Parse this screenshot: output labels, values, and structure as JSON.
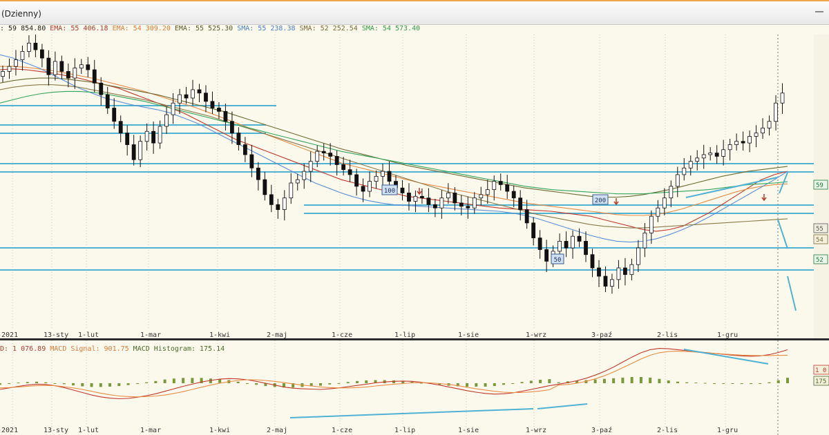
{
  "window": {
    "title": "(Dzienny)"
  },
  "legend": [
    {
      "text": ": 59 854.80",
      "color": "#222222"
    },
    {
      "text": " EMA: 55 406.18",
      "color": "#b03a2e"
    },
    {
      "text": " EMA: 54 309.20",
      "color": "#e07b39"
    },
    {
      "text": " EMA: 55 525.30",
      "color": "#5a5a2a"
    },
    {
      "text": " SMA: 55 238.38",
      "color": "#4a7fc8"
    },
    {
      "text": " SMA: 52 252.54",
      "color": "#7a6a3a"
    },
    {
      "text": " SMA: 54 573.40",
      "color": "#2e9b4a"
    }
  ],
  "macd_legend": [
    {
      "text": "D: 1 076.89",
      "color": "#b03a2e"
    },
    {
      "text": " MACD Signal: 901.75",
      "color": "#e07b39"
    },
    {
      "text": " MACD Histogram: 175.14",
      "color": "#4a6a2a"
    }
  ],
  "chart_data": {
    "type": "candlestick",
    "x_tick_labels": [
      "-2021",
      "13-sty",
      "1-lut",
      "1-mar",
      "1-kwi",
      "2-maj",
      "1-cze",
      "1-lip",
      "1-sie",
      "1-wrz",
      "3-paź",
      "2-lis",
      "1-gru"
    ],
    "price_axis_labels": [
      "59",
      "55",
      "54",
      "52"
    ],
    "macd_axis_labels": [
      "1 0",
      "175"
    ],
    "ma_markers": [
      "100",
      "200",
      "50"
    ],
    "price_ylim": [
      46000,
      63000
    ],
    "close_series": [
      61200,
      61500,
      61900,
      62400,
      62900,
      62500,
      62000,
      61000,
      61800,
      61200,
      60800,
      61400,
      61600,
      61300,
      60500,
      59800,
      59000,
      58200,
      57500,
      56800,
      55900,
      57000,
      57600,
      56900,
      57900,
      58600,
      59300,
      59800,
      59600,
      60100,
      59900,
      59400,
      59000,
      58800,
      58200,
      57500,
      56800,
      56200,
      55400,
      54700,
      53800,
      53200,
      52900,
      53600,
      54500,
      54700,
      55200,
      55800,
      56400,
      56300,
      56100,
      55600,
      55300,
      55000,
      54300,
      54000,
      54600,
      54900,
      55200,
      54600,
      54200,
      53900,
      53400,
      53700,
      53600,
      53200,
      53000,
      53600,
      53900,
      53300,
      53100,
      53000,
      53600,
      53800,
      54100,
      54600,
      54400,
      54000,
      53600,
      52900,
      52100,
      51200,
      50500,
      49800,
      50400,
      51000,
      50600,
      51300,
      51000,
      50200,
      49400,
      48900,
      48300,
      48700,
      49400,
      49000,
      49600,
      50600,
      51500,
      52500,
      53000,
      53600,
      54300,
      55000,
      55400,
      55800,
      56000,
      56200,
      56300,
      56100,
      56500,
      56800,
      57000,
      56900,
      57300,
      57500,
      57800,
      58200,
      59300,
      59900
    ],
    "ema_1": [
      61300,
      61350,
      61300,
      61200,
      61100,
      60950,
      60800,
      60600,
      60400,
      60200,
      59900,
      59600,
      59300,
      59000,
      58700,
      58300,
      57900,
      57500,
      57100,
      56800,
      56500,
      56200,
      55900,
      55600,
      55300,
      55000,
      54700,
      54500,
      54300,
      54100,
      53900,
      53700,
      53600,
      53500,
      53400,
      53300,
      53200,
      53100,
      53000,
      52950,
      52900,
      52850,
      52800,
      52700,
      52600,
      52500,
      52300,
      52100,
      51900,
      51700,
      51600,
      51700,
      51900,
      52300,
      52700,
      53200,
      53700,
      54200,
      54700,
      55000,
      55200
    ],
    "ema_2": [
      61500,
      61500,
      61450,
      61350,
      61250,
      61100,
      60950,
      60800,
      60600,
      60400,
      60200,
      60000,
      59750,
      59500,
      59250,
      59000,
      58700,
      58400,
      58100,
      57800,
      57500,
      57200,
      56900,
      56600,
      56300,
      56000,
      55700,
      55500,
      55300,
      55100,
      54900,
      54700,
      54500,
      54350,
      54200,
      54050,
      53900,
      53750,
      53600,
      53450,
      53300,
      53200,
      53100,
      53000,
      52900,
      52800,
      52700,
      52600,
      52550,
      52550,
      52600,
      52750,
      52950,
      53200,
      53450,
      53700,
      53950,
      54150,
      54300,
      54400,
      54450
    ],
    "ema_3": [
      60500,
      60650,
      60750,
      60800,
      60800,
      60750,
      60650,
      60550,
      60400,
      60250,
      60100,
      59950,
      59800,
      59600,
      59400,
      59200,
      59000,
      58800,
      58550,
      58300,
      58050,
      57800,
      57550,
      57300,
      57050,
      56800,
      56550,
      56350,
      56150,
      55950,
      55750,
      55550,
      55400,
      55250,
      55100,
      54950,
      54800,
      54650,
      54500,
      54350,
      54200,
      54100,
      54000,
      53900,
      53800,
      53700,
      53650,
      53650,
      53700,
      53800,
      53950,
      54100,
      54300,
      54500,
      54700,
      54900,
      55050,
      55200,
      55300,
      55400,
      55500
    ],
    "sma_1": [
      62200,
      62000,
      61700,
      61400,
      61000,
      60600,
      60200,
      59900,
      59600,
      59400,
      59200,
      59050,
      58900,
      58700,
      58400,
      58100,
      57700,
      57300,
      56900,
      56500,
      56100,
      55700,
      55300,
      54900,
      54500,
      54200,
      53900,
      53650,
      53450,
      53300,
      53200,
      53150,
      53100,
      53050,
      53000,
      52950,
      52900,
      52850,
      52800,
      52700,
      52550,
      52350,
      52100,
      51850,
      51600,
      51350,
      51150,
      51000,
      50950,
      51000,
      51150,
      51400,
      51700,
      52050,
      52450,
      52900,
      53350,
      53800,
      54250,
      54700,
      55200
    ],
    "sma_2": [
      60100,
      60250,
      60350,
      60400,
      60400,
      60350,
      60250,
      60100,
      59950,
      59800,
      59650,
      59500,
      59300,
      59100,
      58900,
      58700,
      58500,
      58250,
      58000,
      57750,
      57500,
      57250,
      57000,
      56750,
      56500,
      56250,
      56000,
      55750,
      55500,
      55250,
      55000,
      54750,
      54500,
      54250,
      54000,
      53800,
      53600,
      53400,
      53200,
      53000,
      52800,
      52600,
      52450,
      52300,
      52150,
      52000,
      51900,
      51850,
      51800,
      51800,
      51850,
      51900,
      51950,
      52000,
      52050,
      52100,
      52150,
      52200,
      52250,
      52300,
      52350
    ],
    "sma_3": [
      59300,
      59500,
      59700,
      59850,
      59950,
      60000,
      60000,
      59950,
      59850,
      59700,
      59550,
      59400,
      59200,
      59000,
      58800,
      58600,
      58400,
      58200,
      58000,
      57800,
      57600,
      57400,
      57200,
      57000,
      56800,
      56600,
      56400,
      56250,
      56100,
      55950,
      55800,
      55650,
      55500,
      55350,
      55200,
      55050,
      54900,
      54750,
      54600,
      54450,
      54300,
      54200,
      54100,
      54050,
      54000,
      53950,
      53900,
      53850,
      53850,
      53850,
      53900,
      53950,
      54000,
      54050,
      54100,
      54200,
      54300,
      54400,
      54450,
      54500,
      54573
    ],
    "macd": [
      -200,
      -150,
      -100,
      -60,
      -30,
      -40,
      -80,
      -140,
      -220,
      -300,
      -380,
      -440,
      -480,
      -500,
      -490,
      -450,
      -400,
      -340,
      -260,
      -180,
      -100,
      -30,
      40,
      90,
      130,
      150,
      140,
      110,
      60,
      0,
      -60,
      -120,
      -160,
      -180,
      -190,
      -200,
      -180,
      -150,
      -110,
      -70,
      -30,
      10,
      40,
      60,
      70,
      60,
      30,
      -10,
      -60,
      -120,
      -180,
      -240,
      -290,
      -330,
      -350,
      -340,
      -310,
      -260,
      -200,
      -140,
      -80
    ],
    "macd_signal": [
      -150,
      -140,
      -120,
      -100,
      -80,
      -70,
      -80,
      -110,
      -150,
      -200,
      -260,
      -320,
      -370,
      -410,
      -430,
      -440,
      -430,
      -410,
      -380,
      -330,
      -270,
      -200,
      -130,
      -60,
      0,
      50,
      90,
      110,
      110,
      90,
      60,
      20,
      -20,
      -60,
      -90,
      -120,
      -140,
      -150,
      -150,
      -140,
      -120,
      -90,
      -60,
      -30,
      -10,
      10,
      20,
      10,
      -10,
      -40,
      -80,
      -130,
      -180,
      -220,
      -260,
      -290,
      -300,
      -300,
      -280,
      -250,
      -210
    ],
    "macd_histogram": [
      -50,
      -10,
      20,
      40,
      50,
      30,
      0,
      -30,
      -70,
      -100,
      -120,
      -120,
      -110,
      -90,
      -60,
      -10,
      30,
      70,
      120,
      150,
      170,
      170,
      170,
      150,
      130,
      100,
      50,
      0,
      -50,
      -90,
      -120,
      -140,
      -140,
      -120,
      -100,
      -80,
      -40,
      0,
      40,
      70,
      90,
      100,
      100,
      90,
      80,
      50,
      10,
      -20,
      -50,
      -80,
      -100,
      -110,
      -110,
      -110,
      -90,
      -50,
      -10,
      40,
      80,
      110,
      130
    ],
    "macd2_tail": [
      -30,
      20,
      80,
      160,
      260,
      380,
      520,
      680,
      840,
      980,
      1080,
      1120,
      1110,
      1080,
      1050,
      1020,
      990,
      960,
      930,
      900,
      880,
      870,
      880,
      920,
      990,
      1077
    ],
    "signal2_tail": [
      -60,
      -40,
      0,
      60,
      140,
      240,
      360,
      500,
      640,
      780,
      900,
      980,
      1020,
      1030,
      1020,
      1000,
      980,
      960,
      940,
      920,
      905,
      895,
      890,
      890,
      895,
      902
    ],
    "hist2_tail": [
      30,
      60,
      80,
      100,
      120,
      140,
      160,
      180,
      200,
      200,
      180,
      140,
      90,
      50,
      30,
      20,
      10,
      0,
      -10,
      -20,
      -25,
      -25,
      -10,
      30,
      95,
      175
    ]
  }
}
